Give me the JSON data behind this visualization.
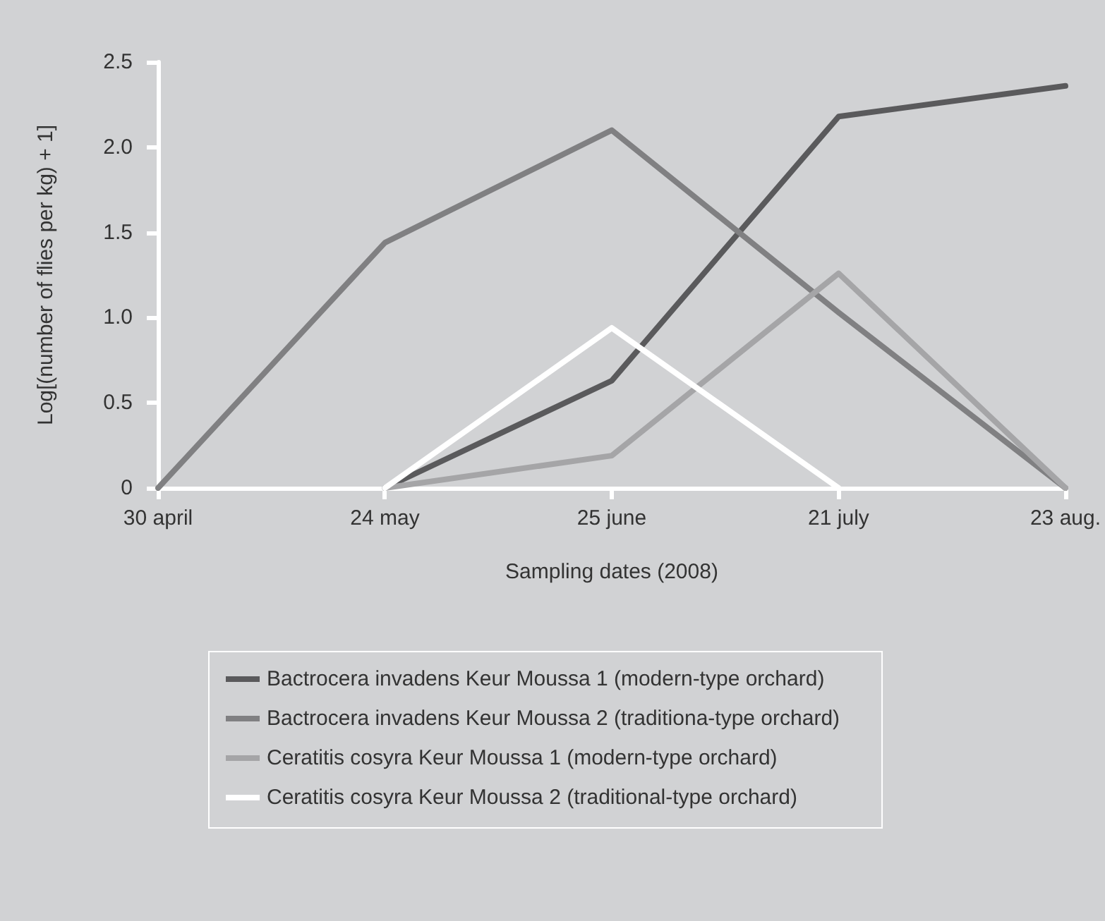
{
  "chart_data": {
    "type": "line",
    "xlabel": "Sampling dates (2008)",
    "ylabel": "Log[(number of flies per kg) + 1]",
    "categories": [
      "30 april",
      "24 may",
      "25 june",
      "21 july",
      "23 aug."
    ],
    "ylim": [
      0,
      2.5
    ],
    "yticks": [
      {
        "value": 0,
        "label": "0"
      },
      {
        "value": 0.5,
        "label": "0.5"
      },
      {
        "value": 1,
        "label": "1.0"
      },
      {
        "value": 1.5,
        "label": "1.5"
      },
      {
        "value": 2,
        "label": "2.0"
      },
      {
        "value": 2.5,
        "label": "2.5"
      }
    ],
    "grid": false,
    "legend": "bottom",
    "marker": "none",
    "line_style": "solid",
    "series": [
      {
        "name": "Bactrocera invadens Keur Moussa 1 (modern-type orchard)",
        "color": "#5a5a5c",
        "values": [
          null,
          0,
          0.63,
          2.18,
          2.36
        ]
      },
      {
        "name": "Bactrocera invadens Keur Moussa 2 (traditiona-type orchard)",
        "color": "#808082",
        "values": [
          0,
          1.44,
          2.1,
          1.03,
          0
        ]
      },
      {
        "name": "Ceratitis cosyra Keur Moussa 1 (modern-type orchard)",
        "color": "#a5a5a7",
        "values": [
          null,
          0,
          0.19,
          1.26,
          0
        ]
      },
      {
        "name": "Ceratitis cosyra Keur Moussa 2 (traditional-type orchard)",
        "color": "#ffffff",
        "values": [
          null,
          0,
          0.94,
          0,
          null
        ]
      }
    ]
  }
}
